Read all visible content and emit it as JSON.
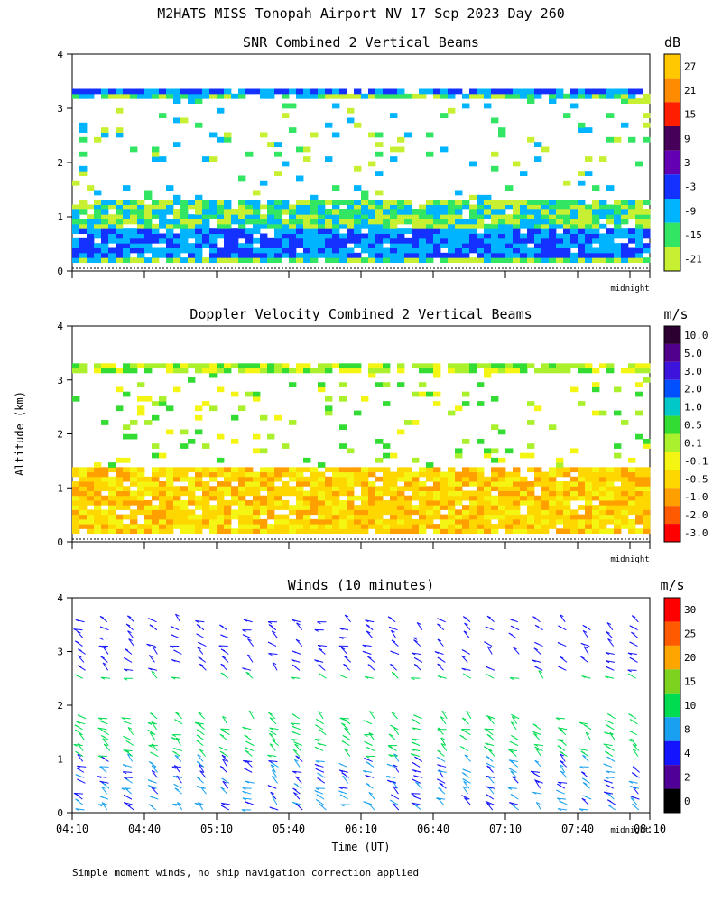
{
  "figure": {
    "title": "M2HATS MISS Tonopah Airport NV  17 Sep 2023 Day 260",
    "ylabel": "Altitude (km)",
    "xlabel": "Time (UT)",
    "midnight_label": "midnight",
    "footnote": "Simple moment winds, no ship navigation correction applied"
  },
  "chart_data": [
    {
      "type": "heatmap",
      "title": "SNR Combined 2 Vertical Beams",
      "units": "dB",
      "ylim": [
        0,
        4
      ],
      "yticks": [
        "0",
        "1",
        "2",
        "3",
        "4"
      ],
      "colorbar_labels": [
        "27",
        "21",
        "15",
        "9",
        "3",
        "-3",
        "-9",
        "-15",
        "-21"
      ],
      "colorbar_colors": [
        "#ffc800",
        "#ff8c00",
        "#ff1e00",
        "#46005a",
        "#6400b4",
        "#1432ff",
        "#00b4ff",
        "#32e664",
        "#c8f032"
      ],
      "data_description": {
        "echo_top_km": 3.35,
        "dense_layer_km": [
          0,
          1.3
        ],
        "strongest_band_km": [
          0.2,
          0.7
        ],
        "thin_features_km": [
          1.3,
          3.0
        ]
      }
    },
    {
      "type": "heatmap",
      "title": "Doppler Velocity Combined 2 Vertical Beams",
      "units": "m/s",
      "ylim": [
        0,
        4
      ],
      "yticks": [
        "0",
        "1",
        "2",
        "3",
        "4"
      ],
      "colorbar_labels": [
        "10.0",
        "5.0",
        "3.0",
        "2.0",
        "1.0",
        "0.5",
        "0.1",
        "-0.1",
        "-0.5",
        "-1.0",
        "-2.0",
        "-3.0"
      ],
      "colorbar_colors": [
        "#2d0032",
        "#50008c",
        "#3c14dc",
        "#0050ff",
        "#00c8c8",
        "#32dc32",
        "#aaf02d",
        "#f5f514",
        "#ffd700",
        "#ffa000",
        "#ff5a00",
        "#ff0000"
      ],
      "data_description": {
        "boundary_layer_km": [
          0,
          1.3
        ],
        "boundary_layer_velocity_ms": [
          -1.0,
          -0.5
        ],
        "top_layer_km": 3.3,
        "top_layer_velocity_ms": [
          0.1,
          0.5
        ]
      }
    },
    {
      "type": "scatter",
      "title": "Winds (10 minutes)",
      "units": "m/s",
      "ylim": [
        0,
        4
      ],
      "yticks": [
        "0",
        "1",
        "2",
        "3",
        "4"
      ],
      "xticks": [
        "04:10",
        "04:40",
        "05:10",
        "05:40",
        "06:10",
        "06:40",
        "07:10",
        "07:40",
        "08:10"
      ],
      "colorbar_labels": [
        "30",
        "25",
        "20",
        "15",
        "10",
        "8",
        "4",
        "2",
        "0"
      ],
      "colorbar_colors": [
        "#ff0000",
        "#ff5a00",
        "#ffa500",
        "#7cd21e",
        "#00dc50",
        "#19a0f0",
        "#1414ff",
        "#500096",
        "#000000"
      ],
      "data_description": {
        "low_level_barbs_km": [
          0,
          1.8
        ],
        "upper_barbs_km": [
          2.5,
          3.6
        ],
        "sparse_barbs_km": [
          1.8,
          2.5
        ]
      }
    }
  ]
}
